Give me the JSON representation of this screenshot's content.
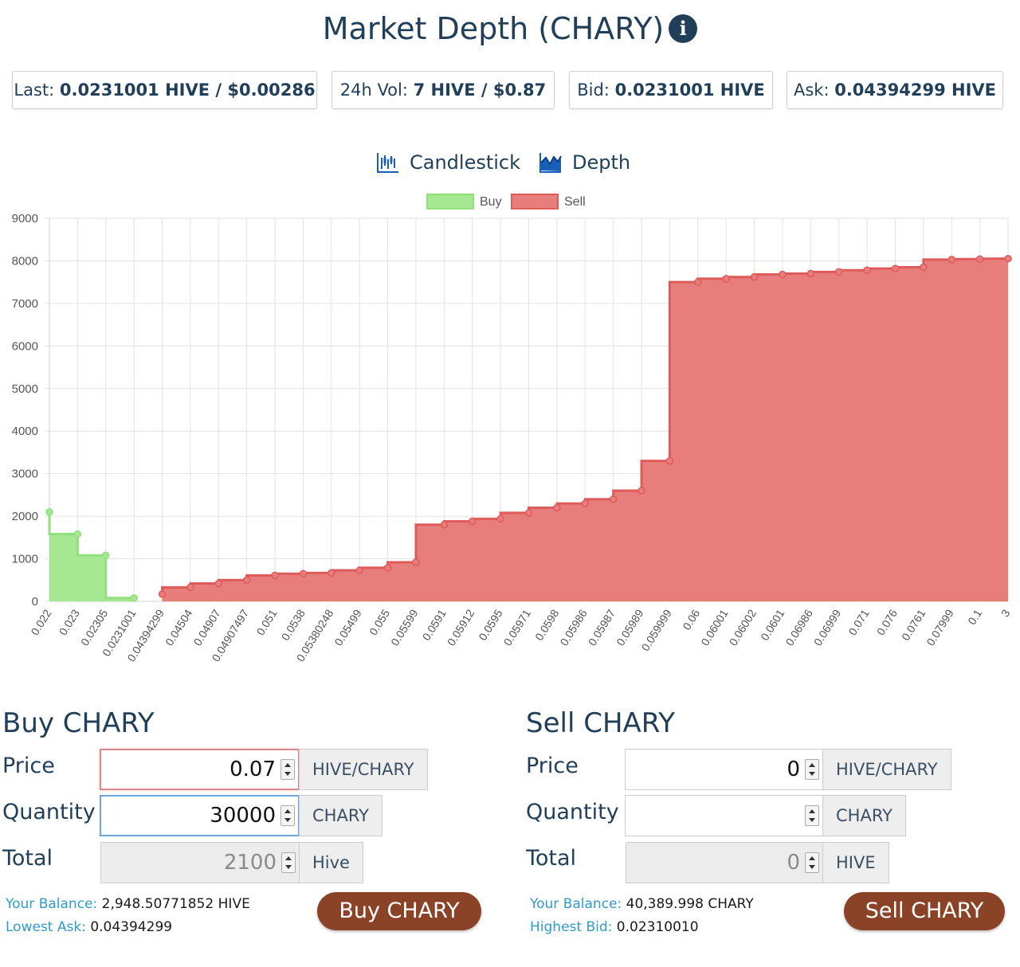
{
  "title": "Market Depth (CHARY)",
  "stats": {
    "last_label": "Last:",
    "last_value": "0.0231001 HIVE / $0.00286",
    "vol_label": "24h Vol:",
    "vol_value": "7 HIVE / $0.87",
    "bid_label": "Bid:",
    "bid_value": "0.0231001 HIVE",
    "ask_label": "Ask:",
    "ask_value": "0.04394299 HIVE"
  },
  "chart_tabs": [
    "Candlestick",
    "Depth"
  ],
  "colors": {
    "buy": "#a5e891",
    "buy_line": "#90e07c",
    "sell": "#e87e7b",
    "sell_line": "#de5b5b",
    "button": "#8a4327",
    "accent_text": "#2f9bc7"
  },
  "chart_data": {
    "type": "area",
    "stepped": true,
    "legend_position": "top",
    "grid": true,
    "ylim": [
      0,
      9000
    ],
    "yticks": [
      0,
      1000,
      2000,
      3000,
      4000,
      5000,
      6000,
      7000,
      8000,
      9000
    ],
    "categories": [
      "0.022",
      "0.023",
      "0.02305",
      "0.0231001",
      "0.04394299",
      "0.04504",
      "0.04907",
      "0.04907497",
      "0.051",
      "0.0538",
      "0.05380248",
      "0.05499",
      "0.055",
      "0.05599",
      "0.0591",
      "0.05912",
      "0.0595",
      "0.05971",
      "0.0598",
      "0.05986",
      "0.05987",
      "0.05989",
      "0.059999",
      "0.06",
      "0.06001",
      "0.06002",
      "0.0601",
      "0.06986",
      "0.06999",
      "0.071",
      "0.076",
      "0.0761",
      "0.07999",
      "0.1",
      "3"
    ],
    "series": [
      {
        "name": "Buy",
        "values": [
          2100,
          1580,
          1080,
          80,
          null,
          null,
          null,
          null,
          null,
          null,
          null,
          null,
          null,
          null,
          null,
          null,
          null,
          null,
          null,
          null,
          null,
          null,
          null,
          null,
          null,
          null,
          null,
          null,
          null,
          null,
          null,
          null,
          null,
          null,
          null
        ]
      },
      {
        "name": "Sell",
        "values": [
          null,
          null,
          null,
          null,
          170,
          330,
          420,
          500,
          610,
          650,
          670,
          730,
          790,
          920,
          1800,
          1880,
          1940,
          2080,
          2200,
          2300,
          2400,
          2600,
          3300,
          7500,
          7580,
          7620,
          7680,
          7700,
          7740,
          7780,
          7820,
          7850,
          8030,
          8040,
          8050
        ]
      }
    ]
  },
  "buy": {
    "heading": "Buy CHARY",
    "price_label": "Price",
    "price_value": "0.07",
    "price_unit": "HIVE/CHARY",
    "qty_label": "Quantity",
    "qty_value": "30000",
    "qty_unit": "CHARY",
    "total_label": "Total",
    "total_value": "2100",
    "total_unit": "Hive",
    "balance_label": "Your Balance:",
    "balance_value": "2,948.50771852 HIVE",
    "ask_label": "Lowest Ask:",
    "ask_value": "0.04394299",
    "button": "Buy CHARY"
  },
  "sell": {
    "heading": "Sell CHARY",
    "price_label": "Price",
    "price_value": "0",
    "price_unit": "HIVE/CHARY",
    "qty_label": "Quantity",
    "qty_value": "",
    "qty_unit": "CHARY",
    "total_label": "Total",
    "total_value": "0",
    "total_unit": "HIVE",
    "balance_label": "Your Balance:",
    "balance_value": "40,389.998 CHARY",
    "bid_label": "Highest Bid:",
    "bid_value": "0.02310010",
    "button": "Sell CHARY"
  }
}
